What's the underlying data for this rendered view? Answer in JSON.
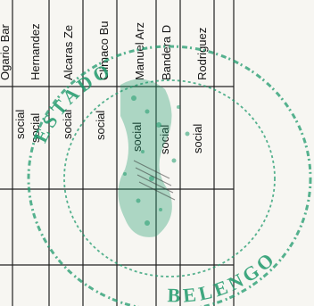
{
  "table": {
    "rows": [
      {
        "category": "social",
        "name": "Ogario Bar"
      },
      {
        "category": "social",
        "name": "Hernandez"
      },
      {
        "category": "social",
        "name": "Alcaras Ze"
      },
      {
        "category": "social",
        "name": "Climaco Bu"
      },
      {
        "category": "social",
        "name": "Manuel Arz"
      },
      {
        "category": "social",
        "name": "Bandera D"
      },
      {
        "category": "social",
        "name": "Rodriguez"
      }
    ]
  },
  "stamp": {
    "text_fragments": [
      "ESTADO",
      "BELENGO",
      "ESTADO DE"
    ],
    "color": "#1f9a6c"
  },
  "colors": {
    "paper": "#f7f6f2",
    "ink": "#151515",
    "stamp": "#1f9a6c"
  }
}
